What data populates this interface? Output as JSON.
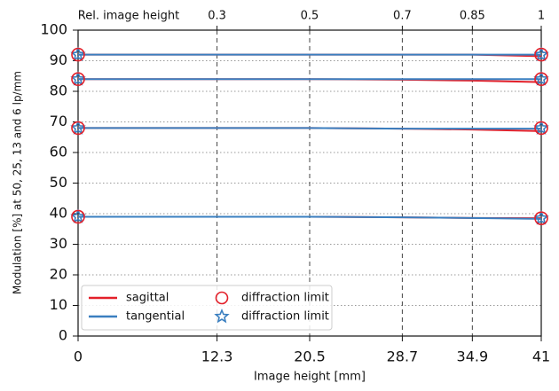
{
  "chart_data": {
    "type": "line",
    "xlabel": "Image height [mm]",
    "ylabel": "Modulation [%] at 50, 25, 13 and 6 lp/mm",
    "top_axis_label": "Rel. image height",
    "x": [
      0,
      12.3,
      20.5,
      28.7,
      34.9,
      41
    ],
    "xlim": [
      0,
      41
    ],
    "xticks": [
      0,
      12.3,
      20.5,
      28.7,
      34.9,
      41
    ],
    "top_xticks": [
      {
        "value": 12.3,
        "label": "0.3"
      },
      {
        "value": 20.5,
        "label": "0.5"
      },
      {
        "value": 28.7,
        "label": "0.7"
      },
      {
        "value": 34.9,
        "label": "0.85"
      },
      {
        "value": 41,
        "label": "1"
      }
    ],
    "ylim": [
      0,
      100
    ],
    "yticks": [
      0,
      10,
      20,
      30,
      40,
      50,
      60,
      70,
      80,
      90,
      100
    ],
    "grid": true,
    "legend": "lower left",
    "series": [
      {
        "name": "sagittal",
        "color": "#e3202a",
        "values": [
          [
            92,
            92,
            92,
            92,
            92,
            91.5
          ],
          [
            84,
            84,
            84,
            83.8,
            83.5,
            83
          ],
          [
            68,
            68,
            68,
            67.8,
            67.5,
            67
          ],
          [
            39,
            39,
            39,
            38.8,
            38.6,
            38.5
          ]
        ]
      },
      {
        "name": "tangential",
        "color": "#3a7fc0",
        "values": [
          [
            92,
            92,
            92,
            92,
            92,
            92
          ],
          [
            84,
            84,
            84,
            84,
            84,
            84
          ],
          [
            68,
            68,
            68,
            67.8,
            67.8,
            67.8
          ],
          [
            39,
            39,
            39,
            38.8,
            38.6,
            38.3
          ]
        ]
      }
    ],
    "markers": [
      {
        "name": "diffraction limit",
        "marker": "star",
        "color": "#3a7fc0",
        "x": [
          0,
          41
        ],
        "values": [
          [
            92,
            92
          ],
          [
            84,
            84
          ],
          [
            68,
            68
          ],
          [
            39,
            38.5
          ]
        ]
      },
      {
        "name": "diffraction limit",
        "marker": "circle",
        "color": "#e3202a",
        "x": [
          0,
          41
        ],
        "values": [
          [
            92,
            92
          ],
          [
            84,
            84
          ],
          [
            68,
            68
          ],
          [
            39,
            38.5
          ]
        ]
      }
    ]
  }
}
